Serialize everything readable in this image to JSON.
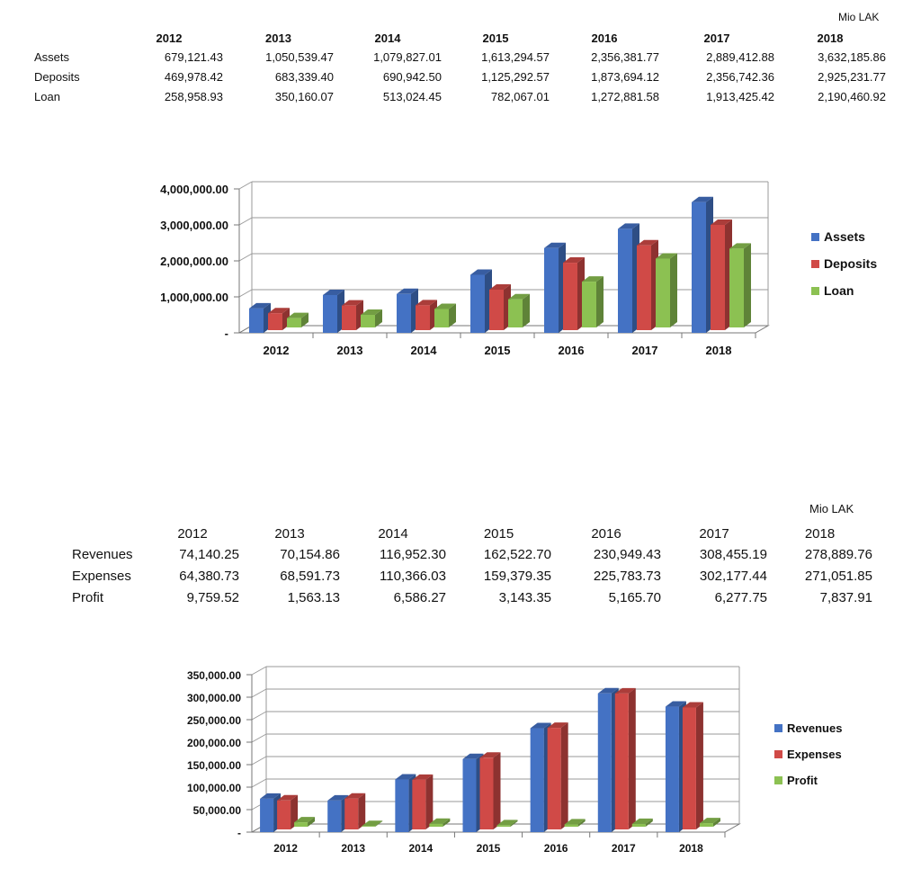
{
  "table1": {
    "unit": "Mio  LAK",
    "years": [
      "2012",
      "2013",
      "2014",
      "2015",
      "2016",
      "2017",
      "2018"
    ],
    "rows": [
      {
        "label": "Assets",
        "values": [
          "679,121.43",
          "1,050,539.47",
          "1,079,827.01",
          "1,613,294.57",
          "2,356,381.77",
          "2,889,412.88",
          "3,632,185.86"
        ]
      },
      {
        "label": "Deposits",
        "values": [
          "469,978.42",
          "683,339.40",
          "690,942.50",
          "1,125,292.57",
          "1,873,694.12",
          "2,356,742.36",
          "2,925,231.77"
        ]
      },
      {
        "label": "Loan",
        "values": [
          "258,958.93",
          "350,160.07",
          "513,024.45",
          "782,067.01",
          "1,272,881.58",
          "1,913,425.42",
          "2,190,460.92"
        ]
      }
    ]
  },
  "table2": {
    "unit": "Mio LAK",
    "years": [
      "2012",
      "2013",
      "2014",
      "2015",
      "2016",
      "2017",
      "2018"
    ],
    "rows": [
      {
        "label": "Revenues",
        "values": [
          "74,140.25",
          "70,154.86",
          "116,952.30",
          "162,522.70",
          "230,949.43",
          "308,455.19",
          "278,889.76"
        ]
      },
      {
        "label": "Expenses",
        "values": [
          "64,380.73",
          "68,591.73",
          "110,366.03",
          "159,379.35",
          "225,783.73",
          "302,177.44",
          "271,051.85"
        ]
      },
      {
        "label": "Profit",
        "values": [
          "9,759.52",
          "1,563.13",
          "6,586.27",
          "3,143.35",
          "5,165.70",
          "6,277.75",
          "7,837.91"
        ]
      }
    ]
  },
  "chart_data": [
    {
      "type": "bar",
      "categories": [
        "2012",
        "2013",
        "2014",
        "2015",
        "2016",
        "2017",
        "2018"
      ],
      "series": [
        {
          "name": "Assets",
          "color": "#4472C4",
          "values": [
            679121.43,
            1050539.47,
            1079827.01,
            1613294.57,
            2356381.77,
            2889412.88,
            3632185.86
          ]
        },
        {
          "name": "Deposits",
          "color": "#D04A47",
          "values": [
            469978.42,
            683339.4,
            690942.5,
            1125292.57,
            1873694.12,
            2356742.36,
            2925231.77
          ]
        },
        {
          "name": "Loan",
          "color": "#8CC152",
          "values": [
            258958.93,
            350160.07,
            513024.45,
            782067.01,
            1272881.58,
            1913425.42,
            2190460.92
          ]
        }
      ],
      "ylim": [
        0,
        4000000
      ],
      "yticks": [
        "-",
        "1,000,000.00",
        "2,000,000.00",
        "3,000,000.00",
        "4,000,000.00"
      ],
      "grid": true,
      "legend": "right"
    },
    {
      "type": "bar",
      "categories": [
        "2012",
        "2013",
        "2014",
        "2015",
        "2016",
        "2017",
        "2018"
      ],
      "series": [
        {
          "name": "Revenues",
          "color": "#4472C4",
          "values": [
            74140.25,
            70154.86,
            116952.3,
            162522.7,
            230949.43,
            308455.19,
            278889.76
          ]
        },
        {
          "name": "Expenses",
          "color": "#D04A47",
          "values": [
            64380.73,
            68591.73,
            110366.03,
            159379.35,
            225783.73,
            302177.44,
            271051.85
          ]
        },
        {
          "name": "Profit",
          "color": "#8CC152",
          "values": [
            9759.52,
            1563.13,
            6586.27,
            3143.35,
            5165.7,
            6277.75,
            7837.91
          ]
        }
      ],
      "ylim": [
        0,
        350000
      ],
      "yticks": [
        "-",
        "50,000.00",
        "100,000.00",
        "150,000.00",
        "200,000.00",
        "250,000.00",
        "300,000.00",
        "350,000.00"
      ],
      "grid": true,
      "legend": "right"
    }
  ]
}
